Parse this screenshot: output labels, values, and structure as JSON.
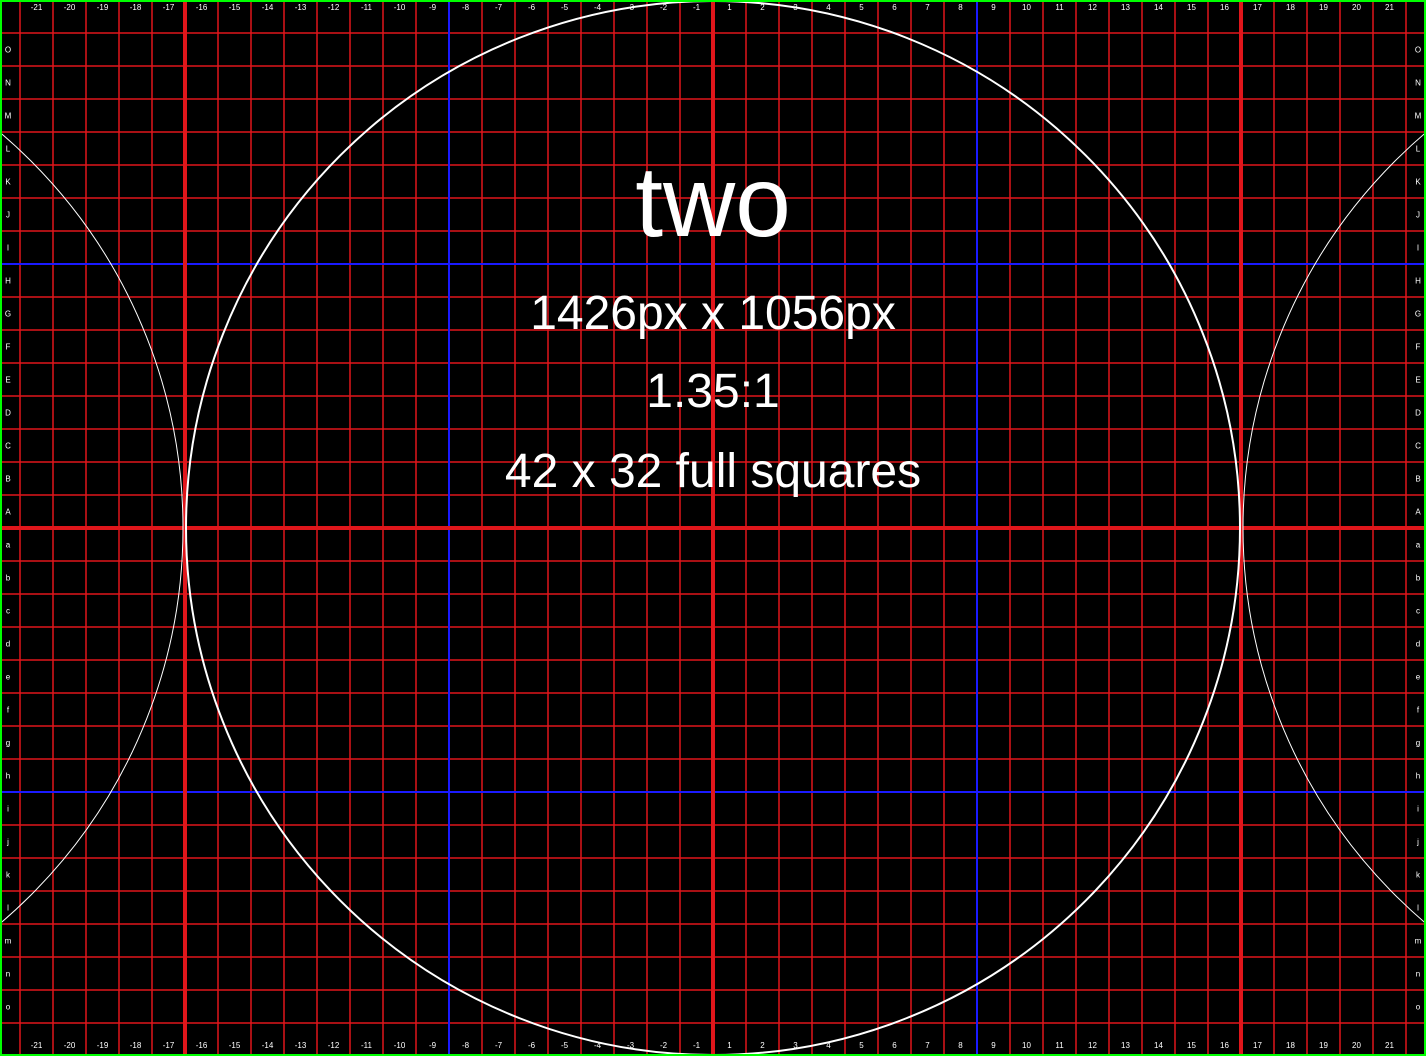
{
  "title": "two",
  "dimensions_text": "1426px x 1056px",
  "ratio_text": "1.35:1",
  "squares_text": "42 x 32 full squares",
  "column_labels": [
    "-21",
    "-20",
    "-19",
    "-18",
    "-17",
    "-16",
    "-15",
    "-14",
    "-13",
    "-12",
    "-11",
    "-10",
    "-9",
    "-8",
    "-7",
    "-6",
    "-5",
    "-4",
    "-3",
    "-2",
    "-1",
    "1",
    "2",
    "3",
    "4",
    "5",
    "6",
    "7",
    "8",
    "9",
    "10",
    "11",
    "12",
    "13",
    "14",
    "15",
    "16",
    "17",
    "18",
    "19",
    "20",
    "21"
  ],
  "row_labels": [
    "O",
    "N",
    "M",
    "L",
    "K",
    "J",
    "I",
    "H",
    "G",
    "F",
    "E",
    "D",
    "C",
    "B",
    "A",
    "a",
    "b",
    "c",
    "d",
    "e",
    "f",
    "g",
    "h",
    "i",
    "j",
    "k",
    "l",
    "m",
    "n",
    "o"
  ],
  "colors": {
    "background": "#000000",
    "grid_line": "#e0161b",
    "major_line": "#e0161b",
    "guide_line": "#1a1aff",
    "border": "#00ff00",
    "circle": "#ffffff",
    "text": "#ffffff"
  }
}
